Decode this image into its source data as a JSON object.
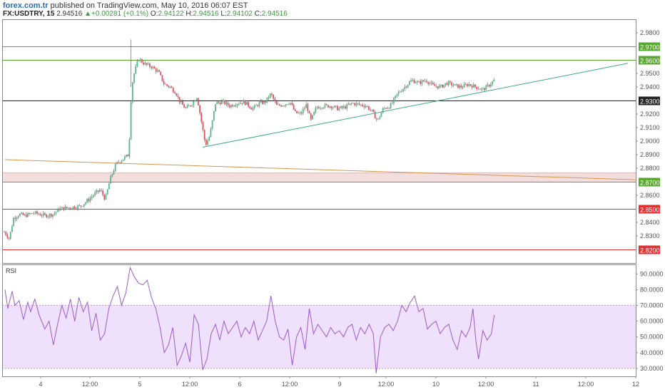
{
  "header": {
    "site": "forex.com.tr",
    "published": "published on TradingView.com, May 10, 2016 06:07 EST",
    "symbol": "FX:USDTRY, 15",
    "last": "2.94516",
    "change": "+0.00281 (+0.1%)",
    "open_label": "O:",
    "open": "2.94122",
    "high_label": "H:",
    "high": "2.94516",
    "low_label": "L:",
    "low": "2.94102",
    "close_label": "C:",
    "close": "2.94516"
  },
  "chart_data": [
    {
      "type": "candlestick",
      "symbol": "FX:USDTRY",
      "interval": "15",
      "ylim": [
        2.81,
        2.99
      ],
      "y_ticks": [
        2.83,
        2.84,
        2.85,
        2.86,
        2.87,
        2.88,
        2.89,
        2.9,
        2.91,
        2.92,
        2.93,
        2.94,
        2.95,
        2.96,
        2.97,
        2.98
      ],
      "y_tick_labels": [
        "2.8300",
        "2.8400",
        "2.8500",
        "2.8600",
        "2.8700",
        "2.8800",
        "2.8900",
        "2.9000",
        "2.9100",
        "2.9200",
        "2.9300",
        "2.9400",
        "2.9500",
        "2.9600",
        "2.9700",
        "2.9800"
      ],
      "x_ticks": [
        {
          "label": "4",
          "x": 57
        },
        {
          "label": "12:00",
          "x": 126
        },
        {
          "label": "5",
          "x": 196
        },
        {
          "label": "12:00",
          "x": 266
        },
        {
          "label": "6",
          "x": 336
        },
        {
          "label": "12:00",
          "x": 406
        },
        {
          "label": "9",
          "x": 476
        },
        {
          "label": "12:00",
          "x": 541
        },
        {
          "label": "10",
          "x": 611
        },
        {
          "label": "12:00",
          "x": 681
        },
        {
          "label": "11",
          "x": 751
        },
        {
          "label": "12:00",
          "x": 821
        },
        {
          "label": "12",
          "x": 891
        }
      ],
      "x_domain": [
        0,
        891
      ],
      "price_keypoints": [
        [
          3,
          2.833
        ],
        [
          10,
          2.828
        ],
        [
          16,
          2.843
        ],
        [
          24,
          2.846
        ],
        [
          32,
          2.845
        ],
        [
          45,
          2.847
        ],
        [
          60,
          2.845
        ],
        [
          72,
          2.846
        ],
        [
          80,
          2.85
        ],
        [
          95,
          2.851
        ],
        [
          110,
          2.852
        ],
        [
          120,
          2.856
        ],
        [
          130,
          2.861
        ],
        [
          138,
          2.864
        ],
        [
          145,
          2.857
        ],
        [
          152,
          2.872
        ],
        [
          160,
          2.883
        ],
        [
          170,
          2.887
        ],
        [
          178,
          2.89
        ],
        [
          182,
          2.94
        ],
        [
          186,
          2.951
        ],
        [
          192,
          2.961
        ],
        [
          200,
          2.957
        ],
        [
          210,
          2.955
        ],
        [
          220,
          2.951
        ],
        [
          228,
          2.942
        ],
        [
          236,
          2.94
        ],
        [
          244,
          2.936
        ],
        [
          250,
          2.929
        ],
        [
          258,
          2.924
        ],
        [
          266,
          2.927
        ],
        [
          274,
          2.933
        ],
        [
          280,
          2.915
        ],
        [
          286,
          2.897
        ],
        [
          292,
          2.904
        ],
        [
          300,
          2.928
        ],
        [
          310,
          2.929
        ],
        [
          320,
          2.926
        ],
        [
          330,
          2.928
        ],
        [
          340,
          2.929
        ],
        [
          352,
          2.924
        ],
        [
          362,
          2.928
        ],
        [
          370,
          2.929
        ],
        [
          378,
          2.935
        ],
        [
          386,
          2.926
        ],
        [
          396,
          2.927
        ],
        [
          405,
          2.929
        ],
        [
          412,
          2.921
        ],
        [
          420,
          2.92
        ],
        [
          428,
          2.927
        ],
        [
          434,
          2.915
        ],
        [
          442,
          2.925
        ],
        [
          452,
          2.926
        ],
        [
          462,
          2.926
        ],
        [
          472,
          2.924
        ],
        [
          482,
          2.925
        ],
        [
          492,
          2.928
        ],
        [
          502,
          2.927
        ],
        [
          512,
          2.926
        ],
        [
          520,
          2.922
        ],
        [
          528,
          2.915
        ],
        [
          536,
          2.924
        ],
        [
          546,
          2.926
        ],
        [
          556,
          2.935
        ],
        [
          566,
          2.94
        ],
        [
          576,
          2.945
        ],
        [
          586,
          2.943
        ],
        [
          596,
          2.945
        ],
        [
          606,
          2.941
        ],
        [
          616,
          2.94
        ],
        [
          626,
          2.943
        ],
        [
          636,
          2.941
        ],
        [
          646,
          2.94
        ],
        [
          656,
          2.942
        ],
        [
          666,
          2.94
        ],
        [
          676,
          2.938
        ],
        [
          684,
          2.941
        ],
        [
          692,
          2.945
        ]
      ],
      "horizontal_levels": [
        {
          "value": 2.97,
          "label": "2.9700",
          "color": "#5aa832",
          "style": "solid"
        },
        {
          "value": 2.96,
          "label": "2.9600",
          "color": "#5aa832",
          "style": "solid"
        },
        {
          "value": 2.93,
          "label": "2.9300",
          "color": "#222222",
          "style": "solid"
        },
        {
          "value": 2.87,
          "label": "2.8700",
          "color": "#5aa832",
          "style": "solid"
        },
        {
          "value": 2.85,
          "label": "2.8500",
          "color": "#e03030",
          "style": "solid"
        },
        {
          "value": 2.82,
          "label": "2.8200",
          "color": "#e03030",
          "style": "solid"
        }
      ],
      "zones": [
        {
          "from": 2.8695,
          "to": 2.8765,
          "color": "#f3dede"
        }
      ],
      "trendlines": [
        {
          "x1": 282,
          "y1": 2.8955,
          "x2": 880,
          "y2": 2.9575,
          "color": "#3eaa8a"
        },
        {
          "x1": 4,
          "y1": 2.8863,
          "x2": 891,
          "y2": 2.8715,
          "color": "#d4944a"
        }
      ],
      "candle_up_color": "#53b987",
      "candle_down_color": "#eb4d5c"
    },
    {
      "type": "line",
      "title": "RSI",
      "ylim": [
        25,
        96
      ],
      "y_ticks": [
        30,
        40,
        50,
        60,
        70,
        80,
        90
      ],
      "y_tick_labels": [
        "30.0000",
        "40.0000",
        "50.0000",
        "60.0000",
        "70.0000",
        "80.0000",
        "90.0000"
      ],
      "band": [
        30,
        70
      ],
      "band_color": "#efe0fb",
      "line_color": "#9c5bc9",
      "x_domain": [
        0,
        891
      ],
      "values": [
        [
          4,
          80
        ],
        [
          8,
          68
        ],
        [
          14,
          79
        ],
        [
          18,
          70
        ],
        [
          24,
          73
        ],
        [
          30,
          61
        ],
        [
          36,
          72
        ],
        [
          40,
          66
        ],
        [
          46,
          74
        ],
        [
          52,
          64
        ],
        [
          60,
          55
        ],
        [
          66,
          60
        ],
        [
          72,
          45
        ],
        [
          78,
          58
        ],
        [
          84,
          70
        ],
        [
          90,
          62
        ],
        [
          96,
          74
        ],
        [
          102,
          60
        ],
        [
          108,
          75
        ],
        [
          114,
          66
        ],
        [
          120,
          72
        ],
        [
          126,
          54
        ],
        [
          132,
          65
        ],
        [
          138,
          48
        ],
        [
          144,
          52
        ],
        [
          150,
          68
        ],
        [
          156,
          76
        ],
        [
          162,
          82
        ],
        [
          168,
          70
        ],
        [
          174,
          78
        ],
        [
          180,
          94
        ],
        [
          186,
          88
        ],
        [
          192,
          84
        ],
        [
          198,
          83
        ],
        [
          204,
          86
        ],
        [
          210,
          75
        ],
        [
          216,
          68
        ],
        [
          222,
          56
        ],
        [
          228,
          40
        ],
        [
          234,
          45
        ],
        [
          240,
          56
        ],
        [
          246,
          32
        ],
        [
          252,
          38
        ],
        [
          258,
          46
        ],
        [
          264,
          34
        ],
        [
          270,
          64
        ],
        [
          276,
          58
        ],
        [
          282,
          29
        ],
        [
          288,
          36
        ],
        [
          294,
          52
        ],
        [
          300,
          58
        ],
        [
          306,
          48
        ],
        [
          312,
          60
        ],
        [
          318,
          52
        ],
        [
          324,
          56
        ],
        [
          330,
          60
        ],
        [
          336,
          50
        ],
        [
          342,
          56
        ],
        [
          348,
          52
        ],
        [
          354,
          60
        ],
        [
          360,
          48
        ],
        [
          366,
          54
        ],
        [
          372,
          60
        ],
        [
          378,
          76
        ],
        [
          384,
          60
        ],
        [
          390,
          50
        ],
        [
          396,
          48
        ],
        [
          402,
          55
        ],
        [
          408,
          32
        ],
        [
          414,
          50
        ],
        [
          420,
          56
        ],
        [
          426,
          42
        ],
        [
          432,
          68
        ],
        [
          438,
          52
        ],
        [
          444,
          58
        ],
        [
          450,
          54
        ],
        [
          456,
          50
        ],
        [
          462,
          56
        ],
        [
          468,
          52
        ],
        [
          474,
          54
        ],
        [
          480,
          50
        ],
        [
          486,
          56
        ],
        [
          492,
          58
        ],
        [
          498,
          48
        ],
        [
          504,
          56
        ],
        [
          510,
          52
        ],
        [
          516,
          58
        ],
        [
          522,
          52
        ],
        [
          526,
          27
        ],
        [
          532,
          50
        ],
        [
          538,
          56
        ],
        [
          544,
          58
        ],
        [
          550,
          54
        ],
        [
          556,
          60
        ],
        [
          562,
          70
        ],
        [
          568,
          66
        ],
        [
          574,
          72
        ],
        [
          580,
          76
        ],
        [
          586,
          66
        ],
        [
          592,
          68
        ],
        [
          598,
          55
        ],
        [
          604,
          58
        ],
        [
          610,
          60
        ],
        [
          616,
          52
        ],
        [
          622,
          56
        ],
        [
          628,
          58
        ],
        [
          634,
          48
        ],
        [
          640,
          42
        ],
        [
          646,
          54
        ],
        [
          652,
          50
        ],
        [
          658,
          56
        ],
        [
          662,
          68
        ],
        [
          666,
          48
        ],
        [
          670,
          36
        ],
        [
          676,
          54
        ],
        [
          682,
          48
        ],
        [
          688,
          52
        ],
        [
          692,
          64
        ]
      ]
    }
  ]
}
